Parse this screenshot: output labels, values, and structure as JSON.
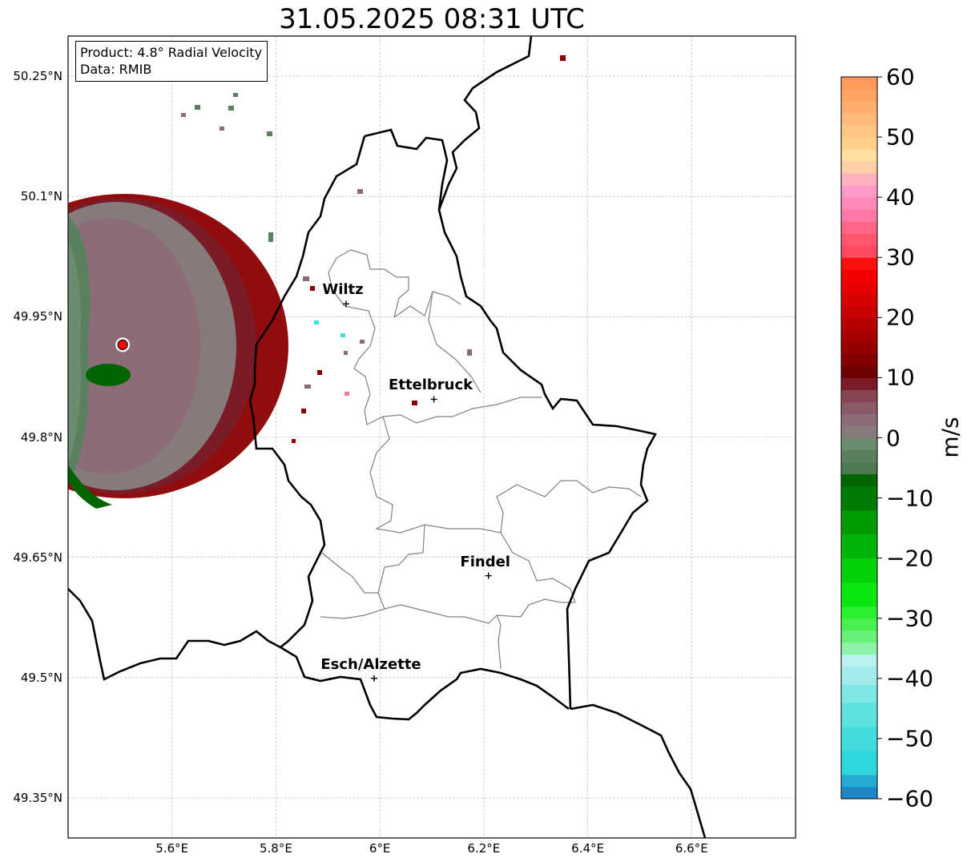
{
  "title": "31.05.2025 08:31 UTC",
  "info": {
    "product": "Product: 4.8° Radial Velocity",
    "data_source": "Data: RMIB"
  },
  "map": {
    "lon_range": [
      5.4,
      6.8
    ],
    "lat_range": [
      49.3,
      50.3
    ],
    "lat_ticks": [
      {
        "value": 50.25,
        "label": "50.25°N"
      },
      {
        "value": 50.1,
        "label": "50.1°N"
      },
      {
        "value": 49.95,
        "label": "49.95°N"
      },
      {
        "value": 49.8,
        "label": "49.8°N"
      },
      {
        "value": 49.65,
        "label": "49.65°N"
      },
      {
        "value": 49.5,
        "label": "49.5°N"
      },
      {
        "value": 49.35,
        "label": "49.35°N"
      }
    ],
    "lon_ticks": [
      {
        "value": 5.6,
        "label": "5.6°E"
      },
      {
        "value": 5.8,
        "label": "5.8°E"
      },
      {
        "value": 6.0,
        "label": "6°E"
      },
      {
        "value": 6.2,
        "label": "6.2°E"
      },
      {
        "value": 6.4,
        "label": "6.4°E"
      },
      {
        "value": 6.6,
        "label": "6.6°E"
      }
    ],
    "gridlines": true,
    "radar_site": {
      "lon": 5.505,
      "lat": 49.915,
      "marker_color": "#ff0000"
    },
    "cities": [
      {
        "name": "Wiltz",
        "lon": 5.935,
        "lat": 49.966
      },
      {
        "name": "Ettelbruck",
        "lon": 6.104,
        "lat": 49.847
      },
      {
        "name": "Findel",
        "lon": 6.209,
        "lat": 49.627
      },
      {
        "name": "Esch/Alzette",
        "lon": 5.989,
        "lat": 49.499
      }
    ]
  },
  "colorbar": {
    "unit": "m/s",
    "min": -60,
    "max": 60,
    "ticks": [
      {
        "value": 60,
        "label": "60"
      },
      {
        "value": 50,
        "label": "50"
      },
      {
        "value": 40,
        "label": "40"
      },
      {
        "value": 30,
        "label": "30"
      },
      {
        "value": 20,
        "label": "20"
      },
      {
        "value": 10,
        "label": "10"
      },
      {
        "value": 0,
        "label": "0"
      },
      {
        "value": -10,
        "label": "−10"
      },
      {
        "value": -20,
        "label": "−20"
      },
      {
        "value": -30,
        "label": "−30"
      },
      {
        "value": -40,
        "label": "−40"
      },
      {
        "value": -50,
        "label": "−50"
      },
      {
        "value": -60,
        "label": "−60"
      }
    ],
    "bands": [
      {
        "from": -60,
        "to": -58,
        "color": "#1f86c6"
      },
      {
        "from": -58,
        "to": -56,
        "color": "#25aad2"
      },
      {
        "from": -56,
        "to": -52,
        "color": "#2fd6dd"
      },
      {
        "from": -52,
        "to": -48,
        "color": "#42dcdc"
      },
      {
        "from": -48,
        "to": -44,
        "color": "#5ee1e1"
      },
      {
        "from": -44,
        "to": -41,
        "color": "#7fe7e7"
      },
      {
        "from": -41,
        "to": -38,
        "color": "#a2ecec"
      },
      {
        "from": -38,
        "to": -36,
        "color": "#bcf1f1"
      },
      {
        "from": -36,
        "to": -34,
        "color": "#8ef3a8"
      },
      {
        "from": -34,
        "to": -32,
        "color": "#66f27a"
      },
      {
        "from": -32,
        "to": -30,
        "color": "#47f04f"
      },
      {
        "from": -30,
        "to": -28,
        "color": "#2bf02e"
      },
      {
        "from": -28,
        "to": -24,
        "color": "#0ae60f"
      },
      {
        "from": -24,
        "to": -20,
        "color": "#03d10a"
      },
      {
        "from": -20,
        "to": -16,
        "color": "#00b508"
      },
      {
        "from": -16,
        "to": -12,
        "color": "#009a05"
      },
      {
        "from": -12,
        "to": -8,
        "color": "#007a02"
      },
      {
        "from": -8,
        "to": -6,
        "color": "#006400"
      },
      {
        "from": -6,
        "to": -4,
        "color": "#4e7a52"
      },
      {
        "from": -4,
        "to": -2,
        "color": "#5a8060"
      },
      {
        "from": -2,
        "to": 0,
        "color": "#6b8c6e"
      },
      {
        "from": 0,
        "to": 2,
        "color": "#867a7a"
      },
      {
        "from": 2,
        "to": 4,
        "color": "#8b6c78"
      },
      {
        "from": 4,
        "to": 6,
        "color": "#8a5a66"
      },
      {
        "from": 6,
        "to": 8,
        "color": "#874452"
      },
      {
        "from": 8,
        "to": 10,
        "color": "#7a1c28"
      },
      {
        "from": 10,
        "to": 12,
        "color": "#6e0000"
      },
      {
        "from": 12,
        "to": 14,
        "color": "#820000"
      },
      {
        "from": 14,
        "to": 16,
        "color": "#960000"
      },
      {
        "from": 16,
        "to": 18,
        "color": "#a60000"
      },
      {
        "from": 18,
        "to": 20,
        "color": "#b80000"
      },
      {
        "from": 20,
        "to": 22,
        "color": "#c90000"
      },
      {
        "from": 22,
        "to": 24,
        "color": "#d90000"
      },
      {
        "from": 24,
        "to": 26,
        "color": "#e80000"
      },
      {
        "from": 26,
        "to": 28,
        "color": "#f50000"
      },
      {
        "from": 28,
        "to": 30,
        "color": "#fb1010"
      },
      {
        "from": 30,
        "to": 32,
        "color": "#ff4a5f"
      },
      {
        "from": 32,
        "to": 34,
        "color": "#ff566e"
      },
      {
        "from": 34,
        "to": 36,
        "color": "#ff6688"
      },
      {
        "from": 36,
        "to": 38,
        "color": "#ff77a3"
      },
      {
        "from": 38,
        "to": 40,
        "color": "#ff88bb"
      },
      {
        "from": 40,
        "to": 42,
        "color": "#ff99c8"
      },
      {
        "from": 42,
        "to": 44,
        "color": "#ffb3c0"
      },
      {
        "from": 44,
        "to": 46,
        "color": "#ffd0a8"
      },
      {
        "from": 46,
        "to": 48,
        "color": "#ffe0a0"
      },
      {
        "from": 48,
        "to": 50,
        "color": "#ffd08c"
      },
      {
        "from": 50,
        "to": 52,
        "color": "#ffc583"
      },
      {
        "from": 52,
        "to": 54,
        "color": "#ffba7a"
      },
      {
        "from": 54,
        "to": 56,
        "color": "#ffae70"
      },
      {
        "from": 56,
        "to": 58,
        "color": "#ffa466"
      },
      {
        "from": 58,
        "to": 60,
        "color": "#ff9a5c"
      }
    ]
  },
  "colors": {
    "outbound_strong": "#8b0000",
    "outbound_weak": "#8b6c78",
    "inbound_weak": "#5a8060",
    "inbound_strong": "#006400",
    "border": "#000000",
    "canton_lines": "#808080"
  }
}
